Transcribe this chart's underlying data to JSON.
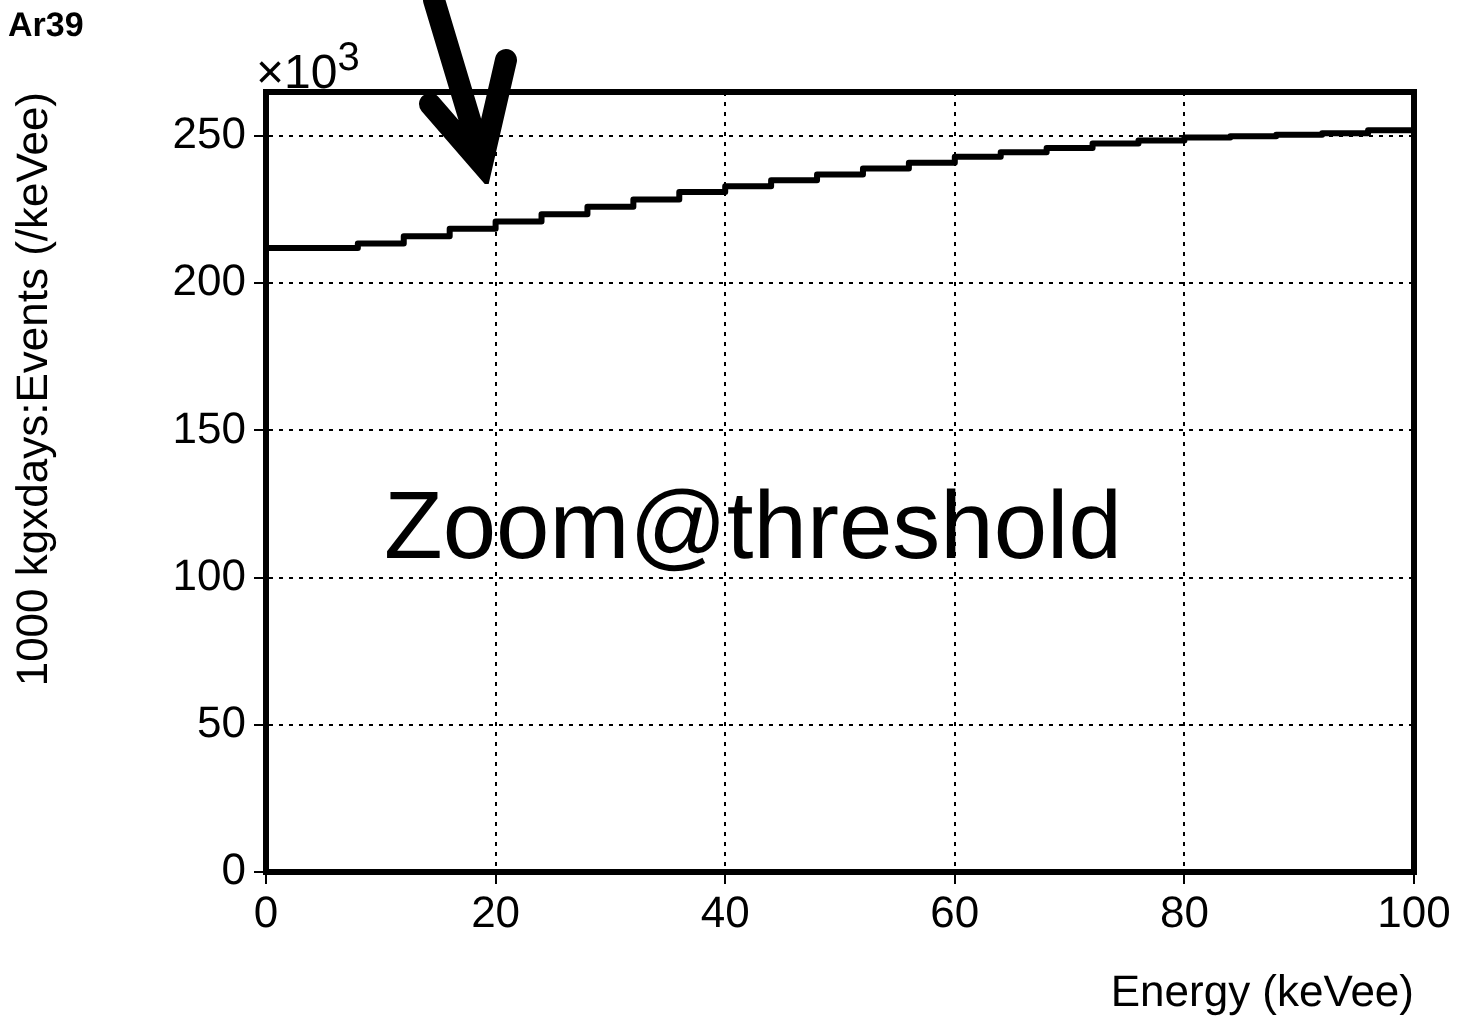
{
  "chart_data": {
    "type": "histogram",
    "title": "Ar39",
    "xlabel": "Energy (keVee)",
    "ylabel": "1000 kgxdays:Events (/keVee)",
    "annotations": [
      "×10$^{3}$",
      "Zoom@threshold"
    ],
    "bins": [
      0,
      4,
      8,
      12,
      16,
      20,
      24,
      28,
      32,
      36,
      40,
      44,
      48,
      52,
      56,
      60,
      64,
      68,
      72,
      76,
      80,
      84,
      88,
      92,
      96,
      100
    ],
    "values": [
      212,
      212,
      213.5,
      216,
      218.5,
      221,
      223.5,
      226,
      228.5,
      231,
      233,
      235,
      237,
      239,
      241,
      243,
      244.5,
      246,
      247.5,
      248.5,
      249.5,
      250,
      250.5,
      251,
      252
    ],
    "color": "#000000",
    "xlim": [
      0,
      100
    ],
    "ylim": [
      0,
      265
    ],
    "xticks": [
      0,
      20,
      40,
      60,
      80,
      100
    ],
    "yticks": [
      0,
      50,
      100,
      150,
      200,
      250
    ],
    "grid": true
  }
}
